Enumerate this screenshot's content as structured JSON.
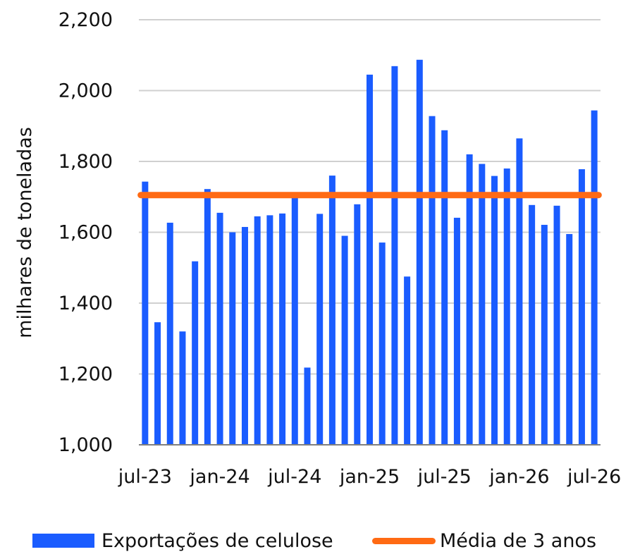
{
  "chart_data": {
    "type": "bar",
    "title": "",
    "xlabel": "",
    "ylabel": "milhares de toneladas",
    "ylim": [
      1000,
      2200
    ],
    "yticks": [
      1000,
      1200,
      1400,
      1600,
      1800,
      2000,
      2200
    ],
    "ytick_labels": [
      "1,000",
      "1,200",
      "1,400",
      "1,600",
      "1,800",
      "2,000",
      "2,200"
    ],
    "categories": [
      "jul-23",
      "ago-23",
      "set-23",
      "out-23",
      "nov-23",
      "dez-23",
      "jan-24",
      "fev-24",
      "mar-24",
      "abr-24",
      "mai-24",
      "jun-24",
      "jul-24",
      "ago-24",
      "set-24",
      "out-24",
      "nov-24",
      "dez-24",
      "jan-25",
      "fev-25",
      "mar-25",
      "abr-25",
      "mai-25",
      "jun-25",
      "jul-25",
      "ago-25",
      "set-25",
      "out-25",
      "nov-25",
      "dez-25",
      "jan-26",
      "fev-26",
      "mar-26",
      "abr-26",
      "mai-26",
      "jun-26",
      "jul-26"
    ],
    "xtick_labels": [
      {
        "index": 0,
        "label": "jul-23"
      },
      {
        "index": 6,
        "label": "jan-24"
      },
      {
        "index": 12,
        "label": "jul-24"
      },
      {
        "index": 18,
        "label": "jan-25"
      },
      {
        "index": 24,
        "label": "jul-25"
      },
      {
        "index": 30,
        "label": "jan-26"
      },
      {
        "index": 36,
        "label": "jul-26"
      }
    ],
    "series": [
      {
        "name": "Exportações de celulose",
        "kind": "bar",
        "color": "#1a5cff",
        "values": [
          1743,
          1346,
          1627,
          1320,
          1518,
          1722,
          1655,
          1600,
          1615,
          1645,
          1648,
          1653,
          1697,
          1218,
          1652,
          1760,
          1590,
          1679,
          2045,
          1571,
          2069,
          1475,
          2087,
          1928,
          1888,
          1641,
          1820,
          1793,
          1759,
          1780,
          1865,
          1677,
          1621,
          1675,
          1595,
          1778,
          1944
        ]
      },
      {
        "name": "Média de 3 anos",
        "kind": "line",
        "color": "#ff6a13",
        "value": 1705
      }
    ],
    "grid": true,
    "legend_position": "bottom"
  }
}
